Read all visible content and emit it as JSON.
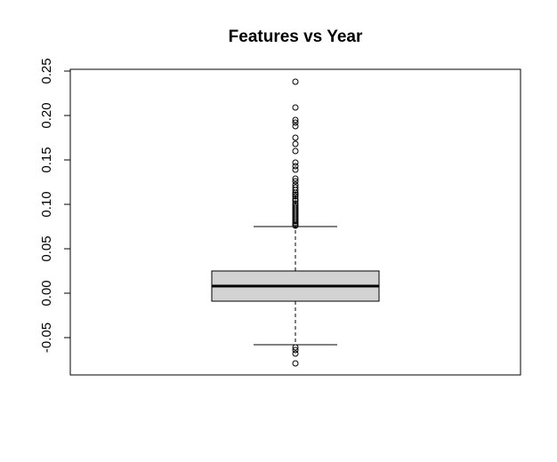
{
  "chart_data": {
    "type": "boxplot",
    "title": "Features vs Year",
    "xlabel": "",
    "ylabel": "",
    "ylim": [
      -0.09,
      0.25
    ],
    "y_ticks": [
      -0.05,
      0.0,
      0.05,
      0.1,
      0.15,
      0.2,
      0.25
    ],
    "y_tick_labels": [
      "-0.05",
      "0.00",
      "0.05",
      "0.10",
      "0.15",
      "0.20",
      "0.25"
    ],
    "grid": false,
    "box": {
      "lower_whisker": -0.058,
      "q1": -0.009,
      "median": 0.008,
      "q3": 0.025,
      "upper_whisker": 0.075,
      "fill": "#d3d3d3"
    },
    "outliers": [
      0.238,
      0.209,
      0.195,
      0.192,
      0.188,
      0.175,
      0.168,
      0.16,
      0.147,
      0.143,
      0.139,
      0.129,
      0.126,
      0.122,
      0.119,
      0.116,
      0.113,
      0.111,
      0.109,
      0.106,
      0.104,
      0.101,
      0.099,
      0.097,
      0.095,
      0.093,
      0.091,
      0.089,
      0.087,
      0.085,
      0.083,
      0.081,
      0.079,
      0.077,
      0.076,
      -0.061,
      -0.064,
      -0.068,
      -0.079
    ]
  }
}
